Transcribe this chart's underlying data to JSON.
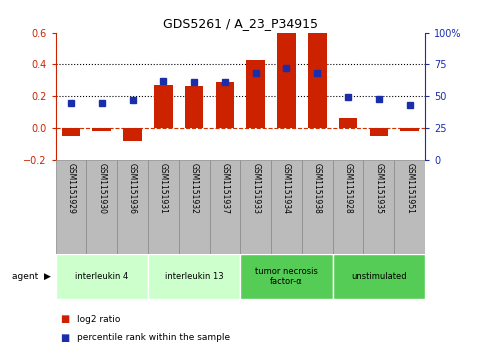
{
  "title": "GDS5261 / A_23_P34915",
  "samples": [
    "GSM1151929",
    "GSM1151930",
    "GSM1151936",
    "GSM1151931",
    "GSM1151932",
    "GSM1151937",
    "GSM1151933",
    "GSM1151934",
    "GSM1151938",
    "GSM1151928",
    "GSM1151935",
    "GSM1151951"
  ],
  "log2_ratio": [
    -0.05,
    -0.02,
    -0.08,
    0.27,
    0.265,
    0.29,
    0.43,
    0.6,
    0.6,
    0.06,
    -0.05,
    -0.02
  ],
  "percentile_rank": [
    45,
    45,
    47,
    62,
    61,
    61,
    68,
    72,
    68,
    49,
    48,
    43
  ],
  "ylim_left": [
    -0.2,
    0.6
  ],
  "ylim_right": [
    0,
    100
  ],
  "yticks_left": [
    -0.2,
    0.0,
    0.2,
    0.4,
    0.6
  ],
  "yticks_right": [
    0,
    25,
    50,
    75,
    100
  ],
  "bar_color": "#CC2200",
  "dot_color": "#1a2eaa",
  "dashed_line_color": "#CC3300",
  "agent_groups": [
    {
      "label": "interleukin 4",
      "start": 0,
      "end": 3,
      "color": "#CCFFCC"
    },
    {
      "label": "interleukin 13",
      "start": 3,
      "end": 6,
      "color": "#CCFFCC"
    },
    {
      "label": "tumor necrosis\nfactor-α",
      "start": 6,
      "end": 9,
      "color": "#55CC55"
    },
    {
      "label": "unstimulated",
      "start": 9,
      "end": 12,
      "color": "#55CC55"
    }
  ],
  "legend_bar_label": "log2 ratio",
  "legend_dot_label": "percentile rank within the sample",
  "agent_label": "agent",
  "left_tick_color": "#CC2200",
  "right_tick_color": "#1a2eaa",
  "sample_box_color": "#BBBBBB",
  "sample_box_edge": "#888888"
}
